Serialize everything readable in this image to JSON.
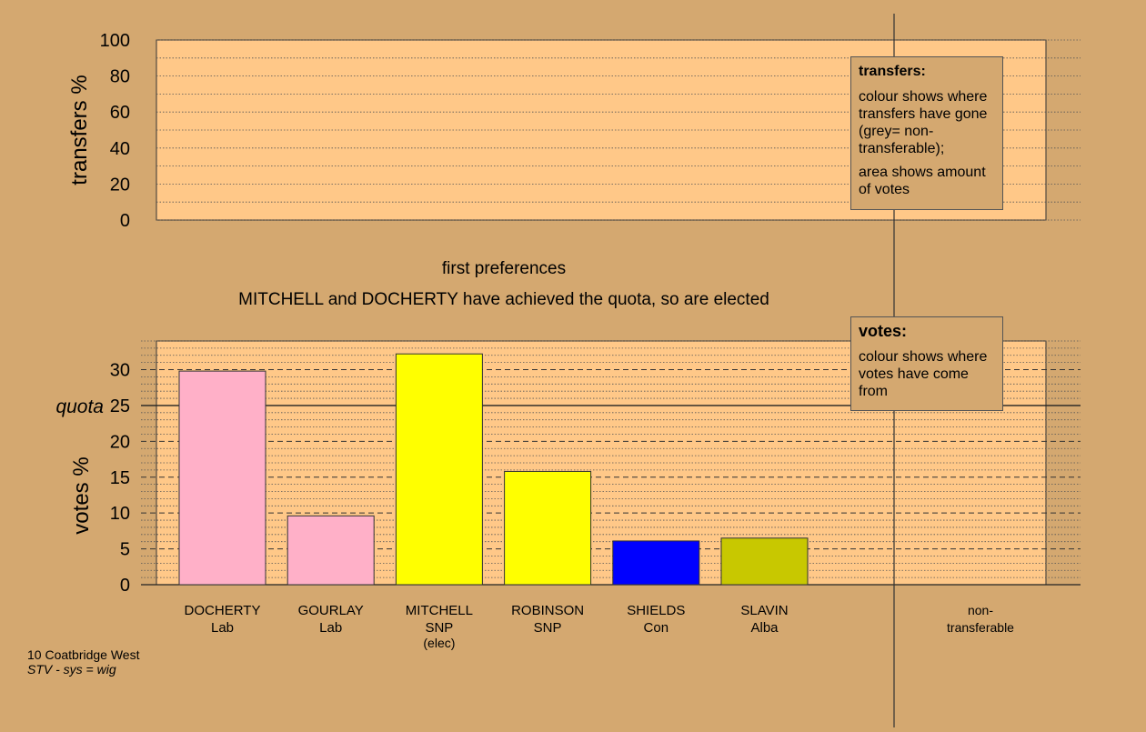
{
  "chart_data": [
    {
      "type": "bar",
      "ylabel": "transfers %",
      "ylim": [
        0,
        100
      ],
      "yticks": [
        0,
        20,
        40,
        60,
        80,
        100
      ],
      "categories": [],
      "values": [],
      "grid": true,
      "legend": {
        "title": "transfers:",
        "lines": [
          "colour shows where transfers have gone (grey= non-transferable);",
          "area shows amount of votes"
        ],
        "placement": "top-right"
      }
    },
    {
      "type": "bar",
      "title": "first preferences",
      "subtitle": "MITCHELL and DOCHERTY have achieved the quota, so are elected",
      "ylabel": "votes %",
      "ylim": [
        0,
        34
      ],
      "yticks": [
        0,
        5,
        10,
        15,
        20,
        25,
        30
      ],
      "quota": 25,
      "quota_label": "quota",
      "grid": true,
      "categories": [
        {
          "name": "DOCHERTY",
          "party": "Lab",
          "note": ""
        },
        {
          "name": "GOURLAY",
          "party": "Lab",
          "note": ""
        },
        {
          "name": "MITCHELL",
          "party": "SNP",
          "note": "(elec)"
        },
        {
          "name": "ROBINSON",
          "party": "SNP",
          "note": ""
        },
        {
          "name": "SHIELDS",
          "party": "Con",
          "note": ""
        },
        {
          "name": "SLAVIN",
          "party": "Alba",
          "note": ""
        }
      ],
      "values": [
        29.8,
        9.6,
        32.2,
        15.8,
        6.1,
        6.5
      ],
      "colors": [
        "#ffb0c8",
        "#ffb0c8",
        "#ffff00",
        "#ffff00",
        "#0000ff",
        "#c8c800"
      ],
      "non_transferable_label": "non-transferable",
      "legend": {
        "title": "votes:",
        "lines": [
          "colour shows where votes have come from"
        ],
        "placement": "top-right"
      }
    }
  ],
  "footer": {
    "ward": "10 Coatbridge West",
    "system": "STV - sys = wig"
  }
}
